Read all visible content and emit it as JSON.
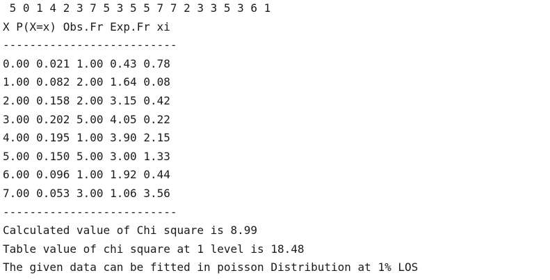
{
  "console": {
    "sample_line": " 5 0 1 4 2 3 7 5 3 5 5 7 7 2 3 3 5 3 6 1",
    "header": "X P(X=x) Obs.Fr Exp.Fr xi",
    "separator_top": "--------------------------",
    "rows": [
      {
        "x": "0.00",
        "p": "0.021",
        "obs": "1.00",
        "exp": "0.43",
        "xi": "0.78"
      },
      {
        "x": "1.00",
        "p": "0.082",
        "obs": "2.00",
        "exp": "1.64",
        "xi": "0.08"
      },
      {
        "x": "2.00",
        "p": "0.158",
        "obs": "2.00",
        "exp": "3.15",
        "xi": "0.42"
      },
      {
        "x": "3.00",
        "p": "0.202",
        "obs": "5.00",
        "exp": "4.05",
        "xi": "0.22"
      },
      {
        "x": "4.00",
        "p": "0.195",
        "obs": "1.00",
        "exp": "3.90",
        "xi": "2.15"
      },
      {
        "x": "5.00",
        "p": "0.150",
        "obs": "5.00",
        "exp": "3.00",
        "xi": "1.33"
      },
      {
        "x": "6.00",
        "p": "0.096",
        "obs": "1.00",
        "exp": "1.92",
        "xi": "0.44"
      },
      {
        "x": "7.00",
        "p": "0.053",
        "obs": "3.00",
        "exp": "1.06",
        "xi": "3.56"
      }
    ],
    "separator_bottom": "--------------------------",
    "calculated_line": "Calculated value of Chi square is 8.99",
    "table_value_line": "Table value of chi square at 1 level is 18.48",
    "conclusion_line": "The given data can be fitted in poisson Distribution at 1% LOS"
  }
}
